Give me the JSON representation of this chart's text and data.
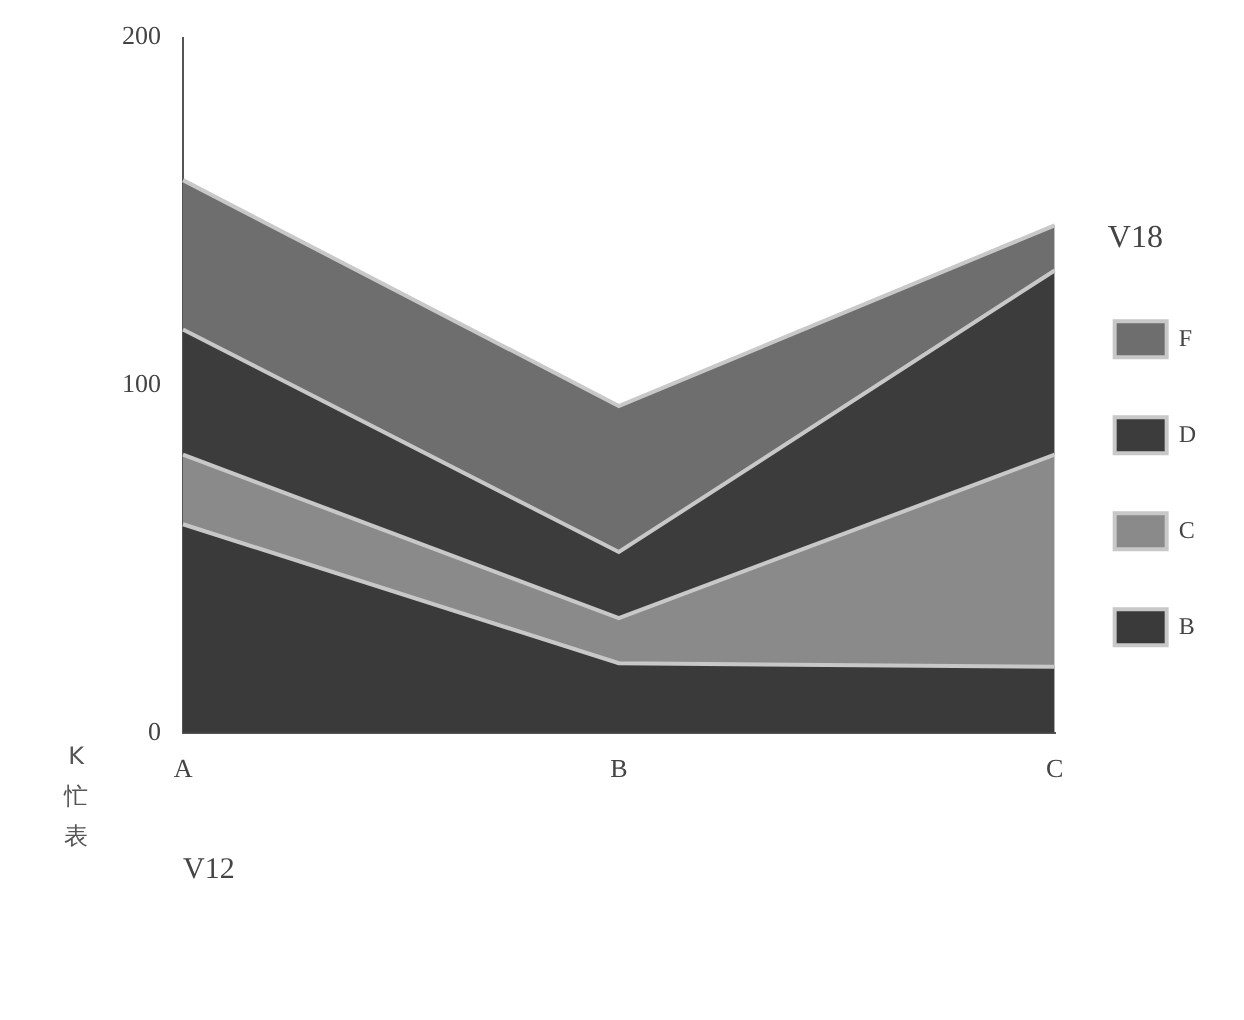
{
  "chart_data": {
    "type": "area",
    "stacked": true,
    "xlabel": "V12",
    "ylabel": "K忙表",
    "legend_title": "V18",
    "legend": "right",
    "grid": false,
    "categories": [
      "A",
      "B",
      "C"
    ],
    "series": [
      {
        "name": "B",
        "color": "#3a3a3a",
        "values": [
          60,
          20,
          19
        ]
      },
      {
        "name": "C",
        "color": "#8a8a8a",
        "values": [
          20,
          13,
          61
        ]
      },
      {
        "name": "D",
        "color": "#3c3c3c",
        "values": [
          36,
          19,
          53
        ]
      },
      {
        "name": "F",
        "color": "#6e6e6e",
        "values": [
          43,
          42,
          13
        ]
      }
    ],
    "ylim": [
      0,
      200
    ],
    "yticks": [
      0,
      100,
      200
    ]
  }
}
